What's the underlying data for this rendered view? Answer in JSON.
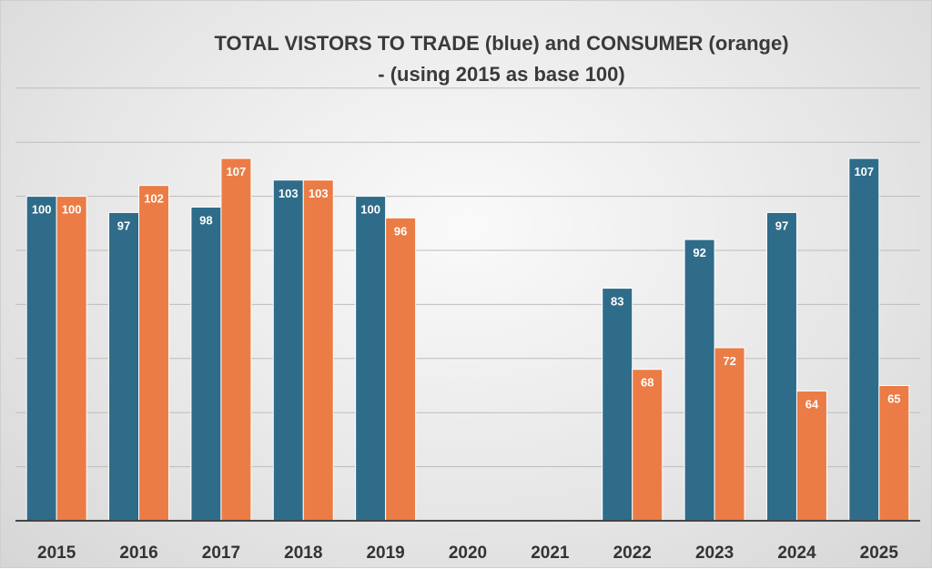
{
  "chart_data": {
    "type": "bar",
    "title": "TOTAL VISTORS TO TRADE (blue) and CONSUMER (orange)",
    "subtitle": "- (using 2015 as base 100)",
    "categories": [
      "2015",
      "2016",
      "2017",
      "2018",
      "2019",
      "2020",
      "2021",
      "2022",
      "2023",
      "2024",
      "2025"
    ],
    "series": [
      {
        "values": [
          100,
          97,
          98,
          103,
          100,
          null,
          null,
          83,
          92,
          97,
          107
        ]
      },
      {
        "values": [
          100,
          102,
          107,
          103,
          96,
          null,
          null,
          68,
          72,
          64,
          65
        ]
      }
    ],
    "ylim": [
      40,
      120
    ],
    "grid": true,
    "y_gridline_values": [
      50,
      60,
      70,
      80,
      90,
      100,
      110,
      120
    ],
    "data_labels": true,
    "colors": {
      "blue": "#2E6C8A",
      "orange": "#EB7C45",
      "gridline": "#bdbdbd",
      "axis": "#444444",
      "tick_text": "#333333"
    }
  }
}
